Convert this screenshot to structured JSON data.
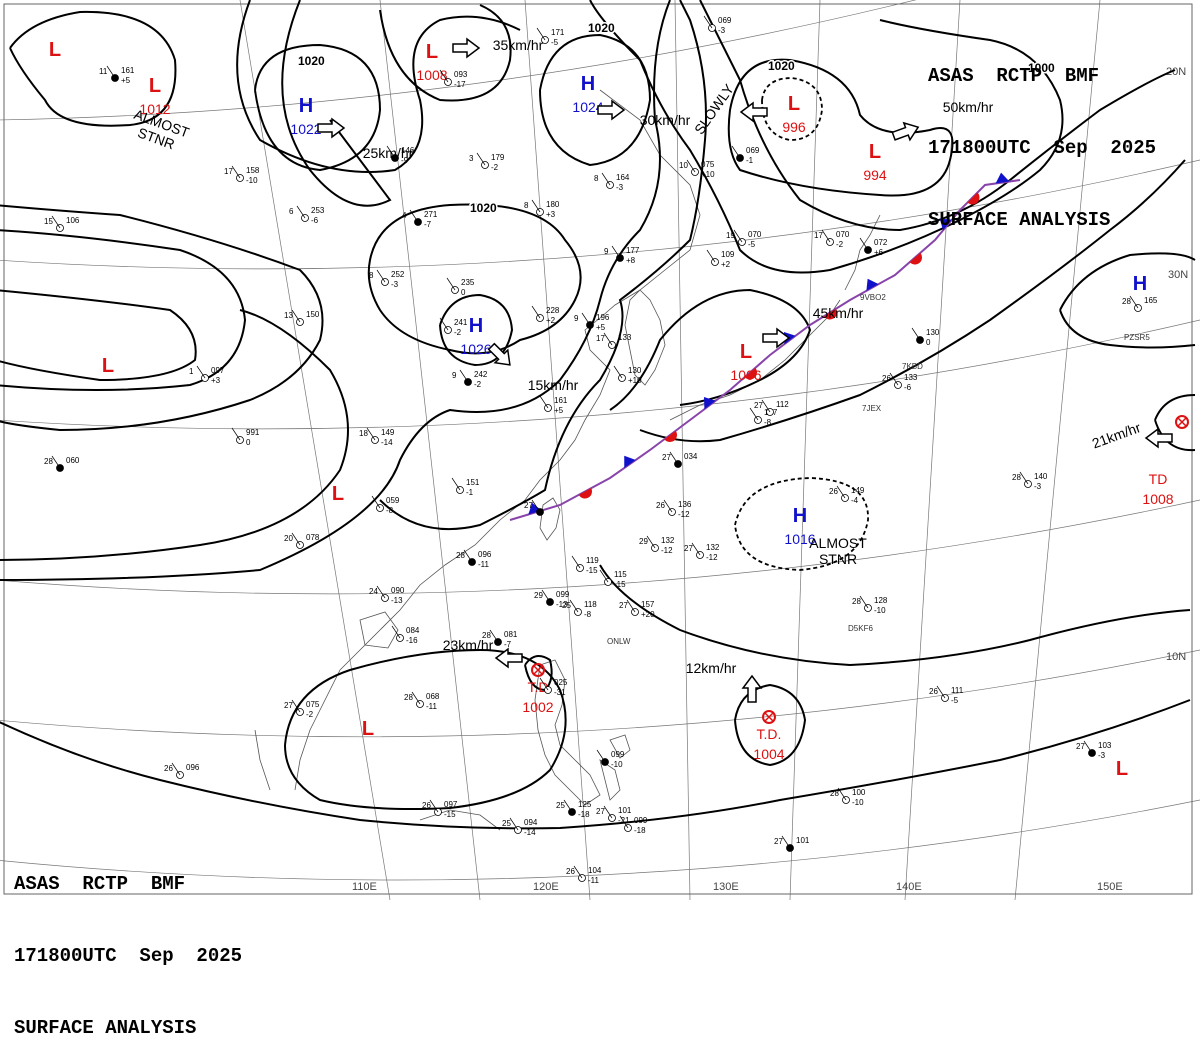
{
  "header": {
    "line1": "ASAS  RCTP  BMF",
    "line2": "171800UTC  Sep  2025",
    "line3": "SURFACE ANALYSIS"
  },
  "colors": {
    "high": "#1111cc",
    "low": "#dd1111",
    "isobar": "#000000",
    "grid": "#777777",
    "coast": "#555555",
    "warm_front": "#dd1111",
    "cold_front": "#1111cc"
  },
  "grid_labels": {
    "lon": [
      "110E",
      "120E",
      "130E",
      "140E",
      "150E"
    ],
    "lat": [
      "30N",
      "20N",
      "10N"
    ]
  },
  "isobar_labels": [
    "1020",
    "1020",
    "1020",
    "1020",
    "1000"
  ],
  "systems": [
    {
      "type": "L",
      "pressure": ""
    },
    {
      "type": "L",
      "pressure": "1012"
    },
    {
      "type": "H",
      "pressure": "1022"
    },
    {
      "type": "L",
      "pressure": "1008"
    },
    {
      "type": "H",
      "pressure": "1024"
    },
    {
      "type": "L",
      "pressure": "996"
    },
    {
      "type": "L",
      "pressure": "994"
    },
    {
      "type": "H",
      "pressure": "1026"
    },
    {
      "type": "L",
      "pressure": ""
    },
    {
      "type": "L",
      "pressure": "1006"
    },
    {
      "type": "L",
      "pressure": ""
    },
    {
      "type": "H",
      "pressure": "1016"
    },
    {
      "type": "H",
      "pressure": ""
    },
    {
      "type": "L",
      "pressure": ""
    },
    {
      "type": "L",
      "pressure": ""
    }
  ],
  "tropical": [
    {
      "label": "T.D",
      "pressure": "1002"
    },
    {
      "label": "T.D.",
      "pressure": "1004"
    },
    {
      "label": "TD",
      "pressure": "1008"
    }
  ],
  "motion_labels": [
    "ALMOST\nSTNR",
    "25km/hr",
    "35km/hr",
    "30km/hr",
    "SLOWLY",
    "50km/hr",
    "15km/hr",
    "45km/hr",
    "21km/hr",
    "ALMOST\nSTNR",
    "23km/hr",
    "12km/hr"
  ],
  "stations": [
    {
      "temp": "11",
      "pres": "161",
      "tend": "+5"
    },
    {
      "temp": "",
      "pres": "093",
      "tend": "-17"
    },
    {
      "temp": "",
      "pres": "171",
      "tend": "-5"
    },
    {
      "temp": "",
      "pres": "069",
      "tend": "-3"
    },
    {
      "temp": "",
      "pres": "146",
      "tend": "-9"
    },
    {
      "temp": "3",
      "pres": "179",
      "tend": "-2"
    },
    {
      "temp": "17",
      "pres": "158",
      "tend": "-10"
    },
    {
      "temp": "6",
      "pres": "253",
      "tend": "-6"
    },
    {
      "temp": "4",
      "pres": "271",
      "tend": "-7"
    },
    {
      "temp": "8",
      "pres": "180",
      "tend": "+3"
    },
    {
      "temp": "8",
      "pres": "164",
      "tend": "-3"
    },
    {
      "temp": "10",
      "pres": "075",
      "tend": "+10"
    },
    {
      "temp": "",
      "pres": "069",
      "tend": "-1"
    },
    {
      "temp": "15",
      "pres": "106",
      "tend": ""
    },
    {
      "temp": "8",
      "pres": "252",
      "tend": "-3"
    },
    {
      "temp": "",
      "pres": "235",
      "tend": "0"
    },
    {
      "temp": "9",
      "pres": "177",
      "tend": "+8"
    },
    {
      "temp": "19",
      "pres": "070",
      "tend": "-5"
    },
    {
      "temp": "",
      "pres": "109",
      "tend": "+2"
    },
    {
      "temp": "17",
      "pres": "070",
      "tend": "-2"
    },
    {
      "temp": "",
      "pres": "072",
      "tend": "+6"
    },
    {
      "temp": "13",
      "pres": "150",
      "tend": ""
    },
    {
      "temp": "",
      "pres": "241",
      "tend": "-2"
    },
    {
      "temp": "",
      "pres": "228",
      "tend": "+2"
    },
    {
      "temp": "9",
      "pres": "196",
      "tend": "+5"
    },
    {
      "temp": "17",
      "pres": "133",
      "tend": ""
    },
    {
      "temp": "",
      "pres": "130",
      "tend": "+10"
    },
    {
      "temp": "1",
      "pres": "097",
      "tend": "+3"
    },
    {
      "temp": "9",
      "pres": "242",
      "tend": "-2"
    },
    {
      "temp": "",
      "pres": "161",
      "tend": "+5"
    },
    {
      "temp": "",
      "pres": "991",
      "tend": "0"
    },
    {
      "temp": "18",
      "pres": "149",
      "tend": "-14"
    },
    {
      "temp": "28",
      "pres": "060",
      "tend": ""
    },
    {
      "temp": "",
      "pres": "151",
      "tend": "-1"
    },
    {
      "temp": "",
      "pres": "059",
      "tend": "-8"
    },
    {
      "temp": "20",
      "pres": "078",
      "tend": ""
    },
    {
      "temp": "27",
      "pres": "",
      "tend": ""
    },
    {
      "temp": "26",
      "pres": "136",
      "tend": "-12"
    },
    {
      "temp": "29",
      "pres": "132",
      "tend": "-12"
    },
    {
      "temp": "27",
      "pres": "132",
      "tend": "-12"
    },
    {
      "temp": "28",
      "pres": "096",
      "tend": "-11"
    },
    {
      "temp": "",
      "pres": "119",
      "tend": "-15"
    },
    {
      "temp": "",
      "pres": "115",
      "tend": "-15"
    },
    {
      "temp": "24",
      "pres": "090",
      "tend": "-13"
    },
    {
      "temp": "29",
      "pres": "099",
      "tend": "-13"
    },
    {
      "temp": "25",
      "pres": "118",
      "tend": "-8"
    },
    {
      "temp": "27",
      "pres": "157",
      "tend": "+20"
    },
    {
      "temp": "",
      "pres": "084",
      "tend": "-16"
    },
    {
      "temp": "28",
      "pres": "081",
      "tend": "-7"
    },
    {
      "temp": "28",
      "pres": "068",
      "tend": "-11"
    },
    {
      "temp": "27",
      "pres": "075",
      "tend": "-2"
    },
    {
      "temp": "",
      "pres": "025",
      "tend": "-31"
    },
    {
      "temp": "",
      "pres": "099",
      "tend": "-10"
    },
    {
      "temp": "26",
      "pres": "096",
      "tend": ""
    },
    {
      "temp": "26",
      "pres": "097",
      "tend": "-15"
    },
    {
      "temp": "25",
      "pres": "094",
      "tend": "-14"
    },
    {
      "temp": "25",
      "pres": "125",
      "tend": "-18"
    },
    {
      "temp": "27",
      "pres": "101",
      "tend": "-21"
    },
    {
      "temp": "",
      "pres": "099",
      "tend": "-18"
    },
    {
      "temp": "26",
      "pres": "104",
      "tend": "-11"
    },
    {
      "temp": "27",
      "pres": "101",
      "tend": ""
    },
    {
      "temp": "28",
      "pres": "100",
      "tend": "-10"
    },
    {
      "temp": "28",
      "pres": "128",
      "tend": "-10"
    },
    {
      "temp": "26",
      "pres": "111",
      "tend": "-5"
    },
    {
      "temp": "27",
      "pres": "103",
      "tend": "-3"
    },
    {
      "temp": "28",
      "pres": "140",
      "tend": "-3"
    },
    {
      "temp": "26",
      "pres": "149",
      "tend": "-4"
    },
    {
      "temp": "26",
      "pres": "133",
      "tend": "-6"
    },
    {
      "temp": "",
      "pres": "130",
      "tend": "0"
    },
    {
      "temp": "28",
      "pres": "165",
      "tend": ""
    },
    {
      "temp": "",
      "pres": "107",
      "tend": "-8"
    },
    {
      "temp": "27",
      "pres": "112",
      "tend": ""
    },
    {
      "temp": "27",
      "pres": "034",
      "tend": ""
    }
  ],
  "ship_ids": [
    "ONLW",
    "D5KF6",
    "7KBD",
    "7JEX",
    "9VBO2",
    "PZSR5"
  ]
}
